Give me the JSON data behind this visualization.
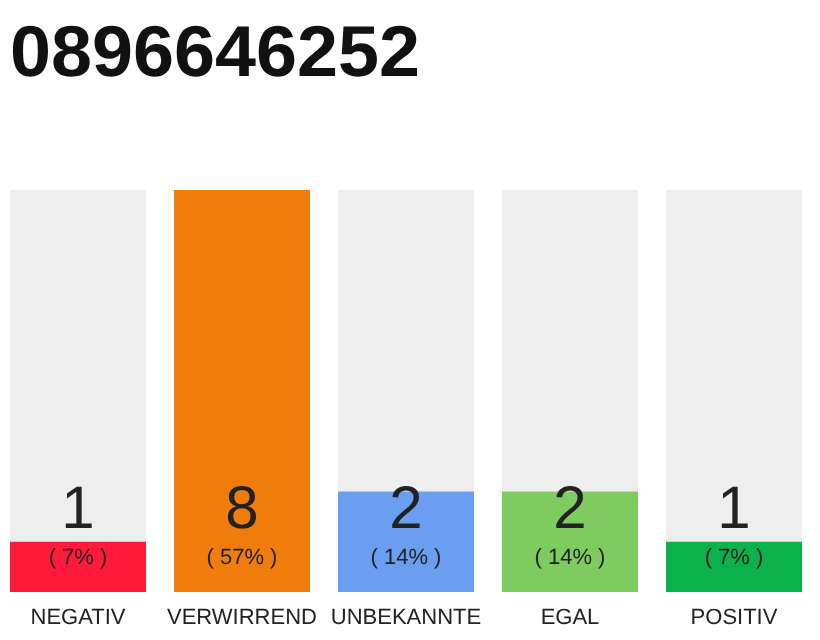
{
  "chart_data": {
    "type": "bar",
    "title": "0896646252",
    "categories": [
      "NEGATIV",
      "VERWIRREND",
      "UNBEKANNTE",
      "EGAL",
      "POSITIV"
    ],
    "values": [
      1,
      8,
      2,
      2,
      1
    ],
    "colors": [
      "#ff1a3c",
      "#f07c0c",
      "#6a9ef0",
      "#7ecb5f",
      "#0db14b"
    ],
    "tick_labels": "x",
    "data_labels": true,
    "annotations": [
      "( 7% )",
      "( 57% )",
      "( 14% )",
      "( 14% )",
      "( 7% )"
    ]
  }
}
